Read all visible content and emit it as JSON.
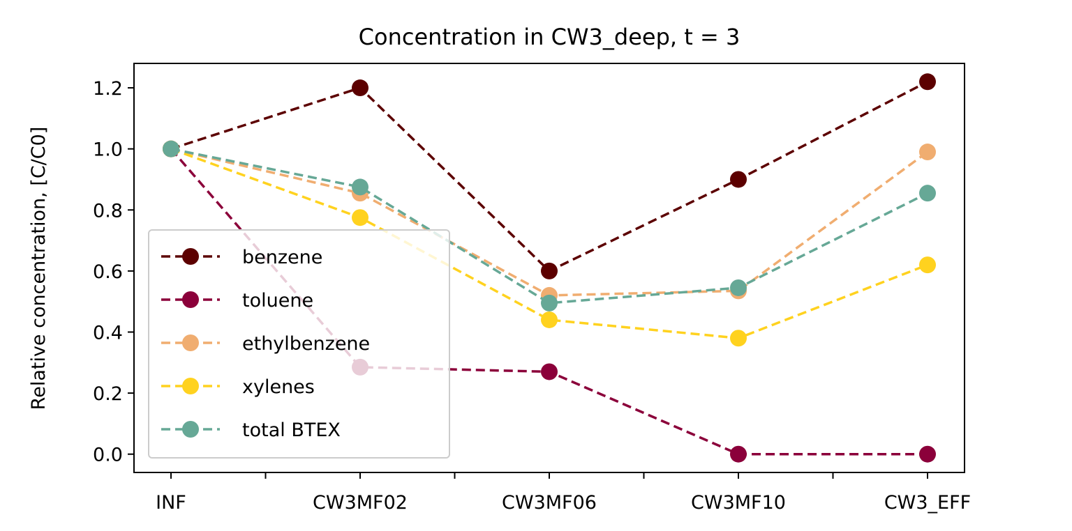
{
  "chart_data": {
    "type": "line",
    "title": "Concentration in CW3_deep, t = 3",
    "xlabel": "",
    "ylabel": "Relative concentration, [C/C0]",
    "categories": [
      "INF",
      "CW3MF02",
      "CW3MF06",
      "CW3MF10",
      "CW3_EFF"
    ],
    "x_minor_ticks": true,
    "ylim": [
      -0.06,
      1.28
    ],
    "yticks": [
      0.0,
      0.2,
      0.4,
      0.6,
      0.8,
      1.0,
      1.2
    ],
    "ytick_labels": [
      "0.0",
      "0.2",
      "0.4",
      "0.6",
      "0.8",
      "1.0",
      "1.2"
    ],
    "grid": false,
    "legend_position": "lower-left",
    "line_style": "dashed",
    "marker": "circle",
    "series": [
      {
        "name": "benzene",
        "color": "#5c0000",
        "values": [
          1.0,
          1.2,
          0.6,
          0.9,
          1.22
        ]
      },
      {
        "name": "toluene",
        "color": "#8b003a",
        "values": [
          1.0,
          0.285,
          0.27,
          0.0,
          0.0
        ]
      },
      {
        "name": "ethylbenzene",
        "color": "#f0ad70",
        "values": [
          1.0,
          0.855,
          0.52,
          0.535,
          0.99
        ]
      },
      {
        "name": "xylenes",
        "color": "#ffd21f",
        "values": [
          1.0,
          0.775,
          0.44,
          0.38,
          0.62
        ]
      },
      {
        "name": "total BTEX",
        "color": "#66a896",
        "values": [
          1.0,
          0.875,
          0.495,
          0.545,
          0.855
        ]
      }
    ]
  }
}
